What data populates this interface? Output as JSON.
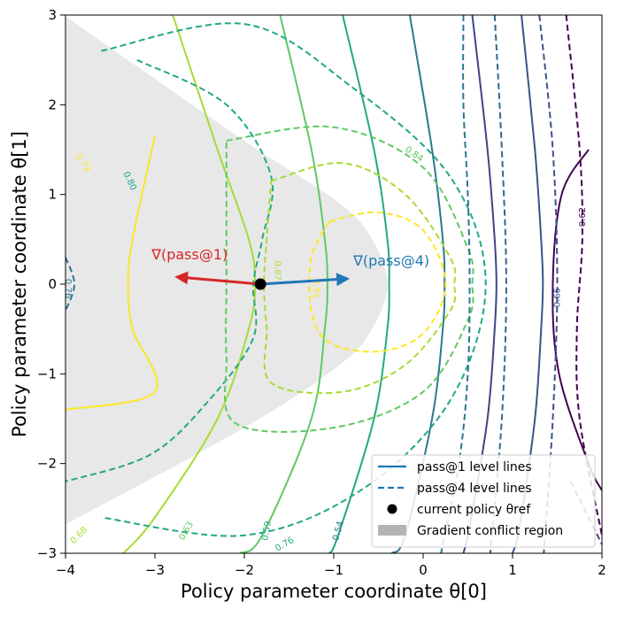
{
  "chart_data": {
    "type": "contour",
    "xlabel": "Policy parameter coordinate θ[0]",
    "ylabel": "Policy parameter coordinate θ[1]",
    "xlim": [
      -4,
      2
    ],
    "ylim": [
      -3,
      3
    ],
    "xticks": [
      -4,
      -3,
      -2,
      -1,
      0,
      1,
      2
    ],
    "yticks": [
      -3,
      -2,
      -1,
      0,
      1,
      2,
      3
    ],
    "xtick_labels": [
      "−4",
      "−3",
      "−2",
      "−1",
      "0",
      "1",
      "2"
    ],
    "ytick_labels": [
      "−3",
      "−2",
      "−1",
      "0",
      "1",
      "2",
      "3"
    ],
    "conflict_region": {
      "description": "gradient conflict region",
      "color": "#e8e8e8",
      "boundary": [
        [
          -4,
          3
        ],
        [
          -3.95,
          2.95
        ],
        [
          -2.0,
          1.6
        ],
        [
          -1.0,
          0.95
        ],
        [
          -0.6,
          0.55
        ],
        [
          -0.4,
          0.0
        ],
        [
          -0.6,
          -0.55
        ],
        [
          -1.0,
          -0.95
        ],
        [
          -2.0,
          -1.6
        ],
        [
          -3.95,
          -2.65
        ],
        [
          -4,
          -2.65
        ]
      ]
    },
    "pass1_lines": [
      {
        "level": "0.72",
        "color": "#fde725",
        "points": [
          [
            -3.0,
            1.65
          ],
          [
            -3.25,
            0.5
          ],
          [
            -3.3,
            0.0
          ],
          [
            -3.25,
            -0.5
          ],
          [
            -3.0,
            -1.2
          ],
          [
            -4.0,
            -1.4
          ]
        ]
      },
      {
        "level": "0.68",
        "color": "#a8db34",
        "points": [
          [
            -2.8,
            3.0
          ],
          [
            -2.3,
            1.5
          ],
          [
            -1.95,
            0.5
          ],
          [
            -1.88,
            0.0
          ],
          [
            -1.95,
            -0.5
          ],
          [
            -2.3,
            -1.5
          ],
          [
            -3.0,
            -2.6
          ],
          [
            -3.35,
            -3.0
          ]
        ]
      },
      {
        "level": "0.63",
        "color": "#5ec962",
        "points": [
          [
            -1.6,
            3.0
          ],
          [
            -1.25,
            1.5
          ],
          [
            -1.1,
            0.5
          ],
          [
            -1.07,
            0.0
          ],
          [
            -1.1,
            -0.5
          ],
          [
            -1.25,
            -1.5
          ],
          [
            -1.8,
            -2.8
          ],
          [
            -2.05,
            -3.0
          ]
        ]
      },
      {
        "level": "0.59",
        "color": "#22a884",
        "points": [
          [
            -0.9,
            3.0
          ],
          [
            -0.55,
            1.5
          ],
          [
            -0.4,
            0.5
          ],
          [
            -0.38,
            0.0
          ],
          [
            -0.4,
            -0.5
          ],
          [
            -0.55,
            -1.5
          ],
          [
            -0.95,
            -2.8
          ],
          [
            -1.05,
            -3.0
          ]
        ]
      },
      {
        "level": "0.54",
        "color": "#2a788e",
        "points": [
          [
            -0.15,
            3.0
          ],
          [
            0.1,
            1.5
          ],
          [
            0.22,
            0.5
          ],
          [
            0.24,
            0.0
          ],
          [
            0.22,
            -0.5
          ],
          [
            0.1,
            -1.5
          ],
          [
            -0.2,
            -2.8
          ],
          [
            -0.35,
            -3.0
          ]
        ]
      },
      {
        "level": "0.65",
        "color": "#414487",
        "points": [
          [
            0.55,
            3.0
          ],
          [
            0.72,
            1.5
          ],
          [
            0.8,
            0.5
          ],
          [
            0.82,
            0.0
          ],
          [
            0.8,
            -0.5
          ],
          [
            0.72,
            -1.5
          ],
          [
            0.52,
            -2.7
          ],
          [
            0.45,
            -3.0
          ]
        ]
      },
      {
        "level": "0.62",
        "color": "#3b528b",
        "points": [
          [
            1.1,
            3.0
          ],
          [
            1.25,
            1.5
          ],
          [
            1.32,
            0.5
          ],
          [
            1.34,
            0.0
          ],
          [
            1.32,
            -0.5
          ],
          [
            1.25,
            -1.5
          ],
          [
            1.08,
            -2.7
          ],
          [
            1.0,
            -3.0
          ]
        ]
      },
      {
        "level": "",
        "color": "#440154",
        "points": [
          [
            1.85,
            1.5
          ],
          [
            1.55,
            1.0
          ],
          [
            1.45,
            0.0
          ],
          [
            1.52,
            -1.0
          ],
          [
            1.85,
            -2.0
          ],
          [
            2.0,
            -2.3
          ]
        ]
      }
    ],
    "pass4_lines": [
      {
        "level": "0.76",
        "color": "#22a884",
        "points": [
          [
            -3.6,
            2.6
          ],
          [
            -2.0,
            2.9
          ],
          [
            -0.8,
            2.2
          ],
          [
            0.3,
            1.2
          ],
          [
            0.7,
            0.0
          ],
          [
            0.3,
            -1.3
          ],
          [
            -0.7,
            -2.3
          ],
          [
            -2.0,
            -2.8
          ],
          [
            -3.6,
            -2.6
          ]
        ]
      },
      {
        "level": "0.80",
        "color": "#22a884",
        "points": [
          [
            -3.2,
            2.5
          ],
          [
            -2.2,
            2.0
          ],
          [
            -1.7,
            1.2
          ],
          [
            -1.8,
            0.5
          ],
          [
            -1.9,
            0.0
          ],
          [
            -1.9,
            -0.6
          ],
          [
            -2.4,
            -1.3
          ],
          [
            -3.05,
            -1.9
          ],
          [
            -4.0,
            -2.2
          ]
        ]
      },
      {
        "level": "0.84",
        "color": "#5ec962",
        "points": [
          [
            -2.2,
            1.6
          ],
          [
            -1.0,
            1.75
          ],
          [
            0.0,
            1.3
          ],
          [
            0.5,
            0.4
          ],
          [
            0.55,
            0.0
          ],
          [
            0.5,
            -0.4
          ],
          [
            0.0,
            -1.2
          ],
          [
            -1.0,
            -1.6
          ],
          [
            -2.1,
            -1.55
          ],
          [
            -2.2,
            -0.8
          ],
          [
            -2.2,
            0.0
          ],
          [
            -2.2,
            0.9
          ],
          [
            -2.2,
            1.6
          ]
        ]
      },
      {
        "level": "0.87",
        "color": "#a8db34",
        "points": [
          [
            -1.7,
            1.15
          ],
          [
            -0.9,
            1.35
          ],
          [
            -0.2,
            1.0
          ],
          [
            0.3,
            0.3
          ],
          [
            0.35,
            0.0
          ],
          [
            0.3,
            -0.3
          ],
          [
            -0.2,
            -0.9
          ],
          [
            -0.9,
            -1.2
          ],
          [
            -1.7,
            -1.1
          ],
          [
            -1.75,
            -0.5
          ],
          [
            -1.78,
            0.0
          ],
          [
            -1.75,
            0.5
          ],
          [
            -1.7,
            1.15
          ]
        ]
      },
      {
        "level": "0.91",
        "color": "#fde725",
        "points": [
          [
            -1.05,
            0.7
          ],
          [
            -0.5,
            0.8
          ],
          [
            0.0,
            0.6
          ],
          [
            0.25,
            0.0
          ],
          [
            0.0,
            -0.55
          ],
          [
            -0.5,
            -0.75
          ],
          [
            -1.05,
            -0.65
          ],
          [
            -1.25,
            -0.3
          ],
          [
            -1.25,
            0.3
          ],
          [
            -1.05,
            0.7
          ]
        ]
      },
      {
        "level": "0.76",
        "color": "#2a788e",
        "points": [
          [
            -4.0,
            0.3
          ],
          [
            -3.9,
            0.0
          ],
          [
            -4.0,
            -0.3
          ]
        ]
      },
      {
        "level": "",
        "color": "#2a788e",
        "points": [
          [
            0.45,
            3.0
          ],
          [
            0.45,
            2.0
          ],
          [
            0.5,
            1.0
          ],
          [
            0.52,
            0.0
          ],
          [
            0.5,
            -1.0
          ],
          [
            0.4,
            -2.0
          ],
          [
            0.2,
            -3.0
          ]
        ]
      },
      {
        "level": "",
        "color": "#31688e",
        "points": [
          [
            0.8,
            3.0
          ],
          [
            0.88,
            1.5
          ],
          [
            0.93,
            0.0
          ],
          [
            0.88,
            -1.5
          ],
          [
            0.75,
            -3.0
          ]
        ]
      },
      {
        "level": "0.65",
        "color": "#3b528b",
        "points": [
          [
            1.3,
            3.0
          ],
          [
            1.45,
            1.5
          ],
          [
            1.5,
            0.0
          ],
          [
            1.45,
            -1.5
          ],
          [
            1.35,
            -3.0
          ]
        ]
      },
      {
        "level": "0.62",
        "color": "#440154",
        "points": [
          [
            1.6,
            3.0
          ],
          [
            1.75,
            1.5
          ],
          [
            1.78,
            0.5
          ],
          [
            1.72,
            -0.5
          ],
          [
            1.75,
            -1.5
          ],
          [
            2.0,
            -2.8
          ]
        ]
      },
      {
        "level": "",
        "color": "#414487",
        "points": [
          [
            1.65,
            -2.2
          ],
          [
            1.85,
            -2.6
          ],
          [
            2.0,
            -2.9
          ]
        ]
      }
    ],
    "contour_labels": [
      {
        "text": "0.72",
        "x": -3.8,
        "y": 1.35,
        "color": "#fde725",
        "rotate": 55
      },
      {
        "text": "0.80",
        "x": -3.28,
        "y": 1.15,
        "color": "#22a884",
        "rotate": 65
      },
      {
        "text": "0.84",
        "x": -0.1,
        "y": 1.45,
        "color": "#5ec962",
        "rotate": 35
      },
      {
        "text": "0.87",
        "x": -1.63,
        "y": 0.15,
        "color": "#a8db34",
        "rotate": 90
      },
      {
        "text": "0.91",
        "x": -1.2,
        "y": -0.05,
        "color": "#fde725",
        "rotate": 90
      },
      {
        "text": "0.76",
        "x": -3.97,
        "y": -0.05,
        "color": "#2a788e",
        "rotate": 90
      },
      {
        "text": "0.62",
        "x": 1.78,
        "y": 0.75,
        "color": "#440154",
        "rotate": -90
      },
      {
        "text": "0.65",
        "x": 1.5,
        "y": -0.15,
        "color": "#3b528b",
        "rotate": -90
      },
      {
        "text": "0.68",
        "x": -3.85,
        "y": -2.8,
        "color": "#a8db34",
        "rotate": -45
      },
      {
        "text": "0.63",
        "x": -2.65,
        "y": -2.75,
        "color": "#5ec962",
        "rotate": -60
      },
      {
        "text": "0.59",
        "x": -1.75,
        "y": -2.75,
        "color": "#22a884",
        "rotate": -80
      },
      {
        "text": "0.76",
        "x": -1.55,
        "y": -2.9,
        "color": "#22a884",
        "rotate": -30
      },
      {
        "text": "0.54",
        "x": -0.95,
        "y": -2.75,
        "color": "#2a788e",
        "rotate": -75
      }
    ],
    "current_policy": {
      "x": -1.82,
      "y": 0.0
    },
    "grad_pass1": {
      "label": "∇(pass@1)",
      "tip": [
        -2.75,
        0.08
      ],
      "color": "#d62728"
    },
    "grad_pass4": {
      "label": "∇(pass@4)",
      "tip": [
        -0.85,
        0.06
      ],
      "color": "#1f77b4"
    },
    "legend": {
      "location": "lower right",
      "entries": [
        {
          "label": "pass@1 level lines",
          "style": "solid",
          "color": "#1f77b4"
        },
        {
          "label": "pass@4 level lines",
          "style": "dashed",
          "color": "#1f77b4"
        },
        {
          "label": "current policy θref",
          "style": "dot",
          "color": "#000000"
        },
        {
          "label": "Gradient conflict region",
          "style": "patch",
          "color": "#b4b4b4"
        }
      ]
    }
  }
}
